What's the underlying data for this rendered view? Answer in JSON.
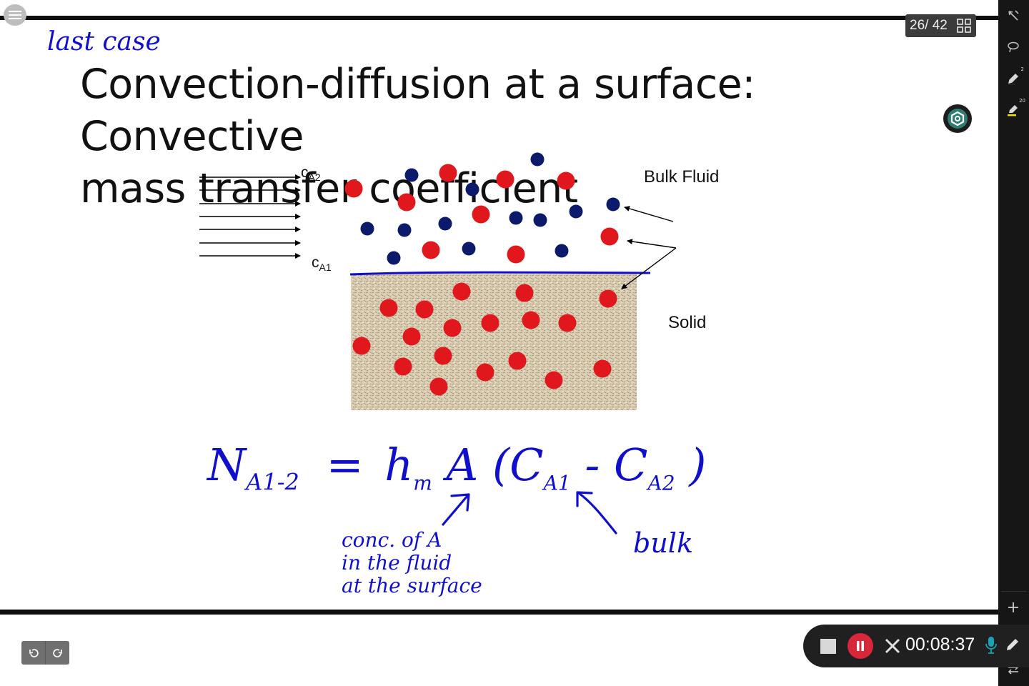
{
  "viewer": {
    "page_counter": "26/ 42",
    "menu_icon": "hamburger-menu-icon",
    "grid_icon": "grid-view-icon"
  },
  "annotation": {
    "top_note": "last case",
    "formula_lhs": "N",
    "formula_lhs_sub": "A1-2",
    "formula_eq": "=",
    "formula_h": "h",
    "formula_h_sub": "m",
    "formula_rest": "A (C",
    "formula_c1_sub": "A1",
    "formula_minus": "- C",
    "formula_c2_sub": "A2",
    "formula_close": ")",
    "note_surface": [
      "conc. of A",
      "in the fluid",
      "at the surface"
    ],
    "note_bulk": "bulk"
  },
  "slide": {
    "title_line1": "Convection-diffusion at a surface: Convective",
    "title_line2": "mass transfer coefficient",
    "label_ca2": "c",
    "label_ca2_sub": "A2",
    "label_ca1": "c",
    "label_ca1_sub": "A1",
    "label_bulk_fluid": "Bulk Fluid",
    "label_solid": "Solid"
  },
  "recorder": {
    "time": "00:08:37"
  },
  "colors": {
    "ink_blue": "#1010cc",
    "red_particle": "#e0171c",
    "navy_particle": "#0c1a6b",
    "solid_fill": "#d9cbb0",
    "record_red": "#d8263a",
    "mic_teal": "#1aa3b5"
  }
}
